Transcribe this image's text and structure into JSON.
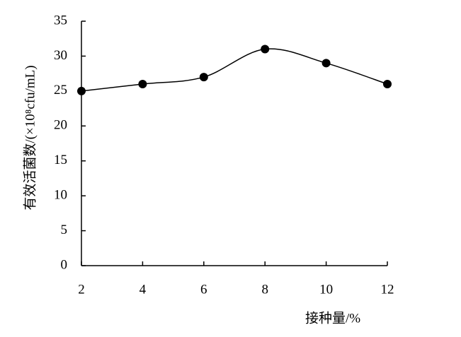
{
  "chart_data": {
    "type": "line",
    "x_label": "接种量/%",
    "y_label": "有效活菌数/(×10⁸cfu/mL)",
    "x": [
      2,
      4,
      6,
      8,
      10,
      12
    ],
    "series": [
      {
        "color": "#000000",
        "values": [
          25,
          26,
          27,
          31,
          29,
          26
        ]
      }
    ],
    "xlim": [
      2,
      12
    ],
    "xticks": [
      2,
      4,
      6,
      8,
      10,
      12
    ],
    "ylim": [
      0,
      35
    ],
    "yticks": [
      0,
      5,
      10,
      15,
      20,
      25,
      30,
      35
    ],
    "smooth": true,
    "grid": false
  }
}
